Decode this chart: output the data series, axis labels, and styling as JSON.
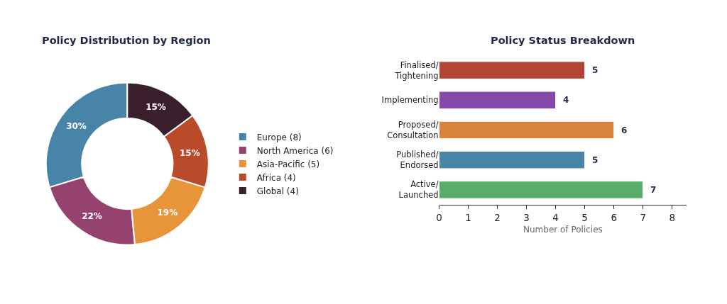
{
  "chart_data": [
    {
      "type": "donut",
      "title": "Policy Distribution by Region",
      "categories": [
        "Europe (8)",
        "North America (6)",
        "Asia-Pacific (5)",
        "Africa (4)",
        "Global (4)"
      ],
      "values": [
        30,
        22,
        19,
        15,
        15
      ],
      "colors": [
        "#4884a8",
        "#96426f",
        "#e6953a",
        "#b94a2a",
        "#3a1f2c"
      ],
      "value_labels": [
        "30%",
        "22%",
        "19%",
        "15%",
        "15%"
      ],
      "legend": "right"
    },
    {
      "type": "bar",
      "title": "Policy Status Breakdown",
      "orientation": "horizontal",
      "categories": [
        "Finalised/\nTightening",
        "Implementing",
        "Proposed/\nConsultation",
        "Published/\nEndorsed",
        "Active/\nLaunched"
      ],
      "values": [
        5,
        4,
        6,
        5,
        7
      ],
      "colors": [
        "#b24434",
        "#8548a8",
        "#d9843b",
        "#4884a8",
        "#57ad69"
      ],
      "xlabel": "Number of Policies",
      "xlim": [
        0,
        8.5
      ],
      "xticks": [
        0,
        1,
        2,
        3,
        4,
        5,
        6,
        7,
        8
      ],
      "data_labels": true
    }
  ]
}
